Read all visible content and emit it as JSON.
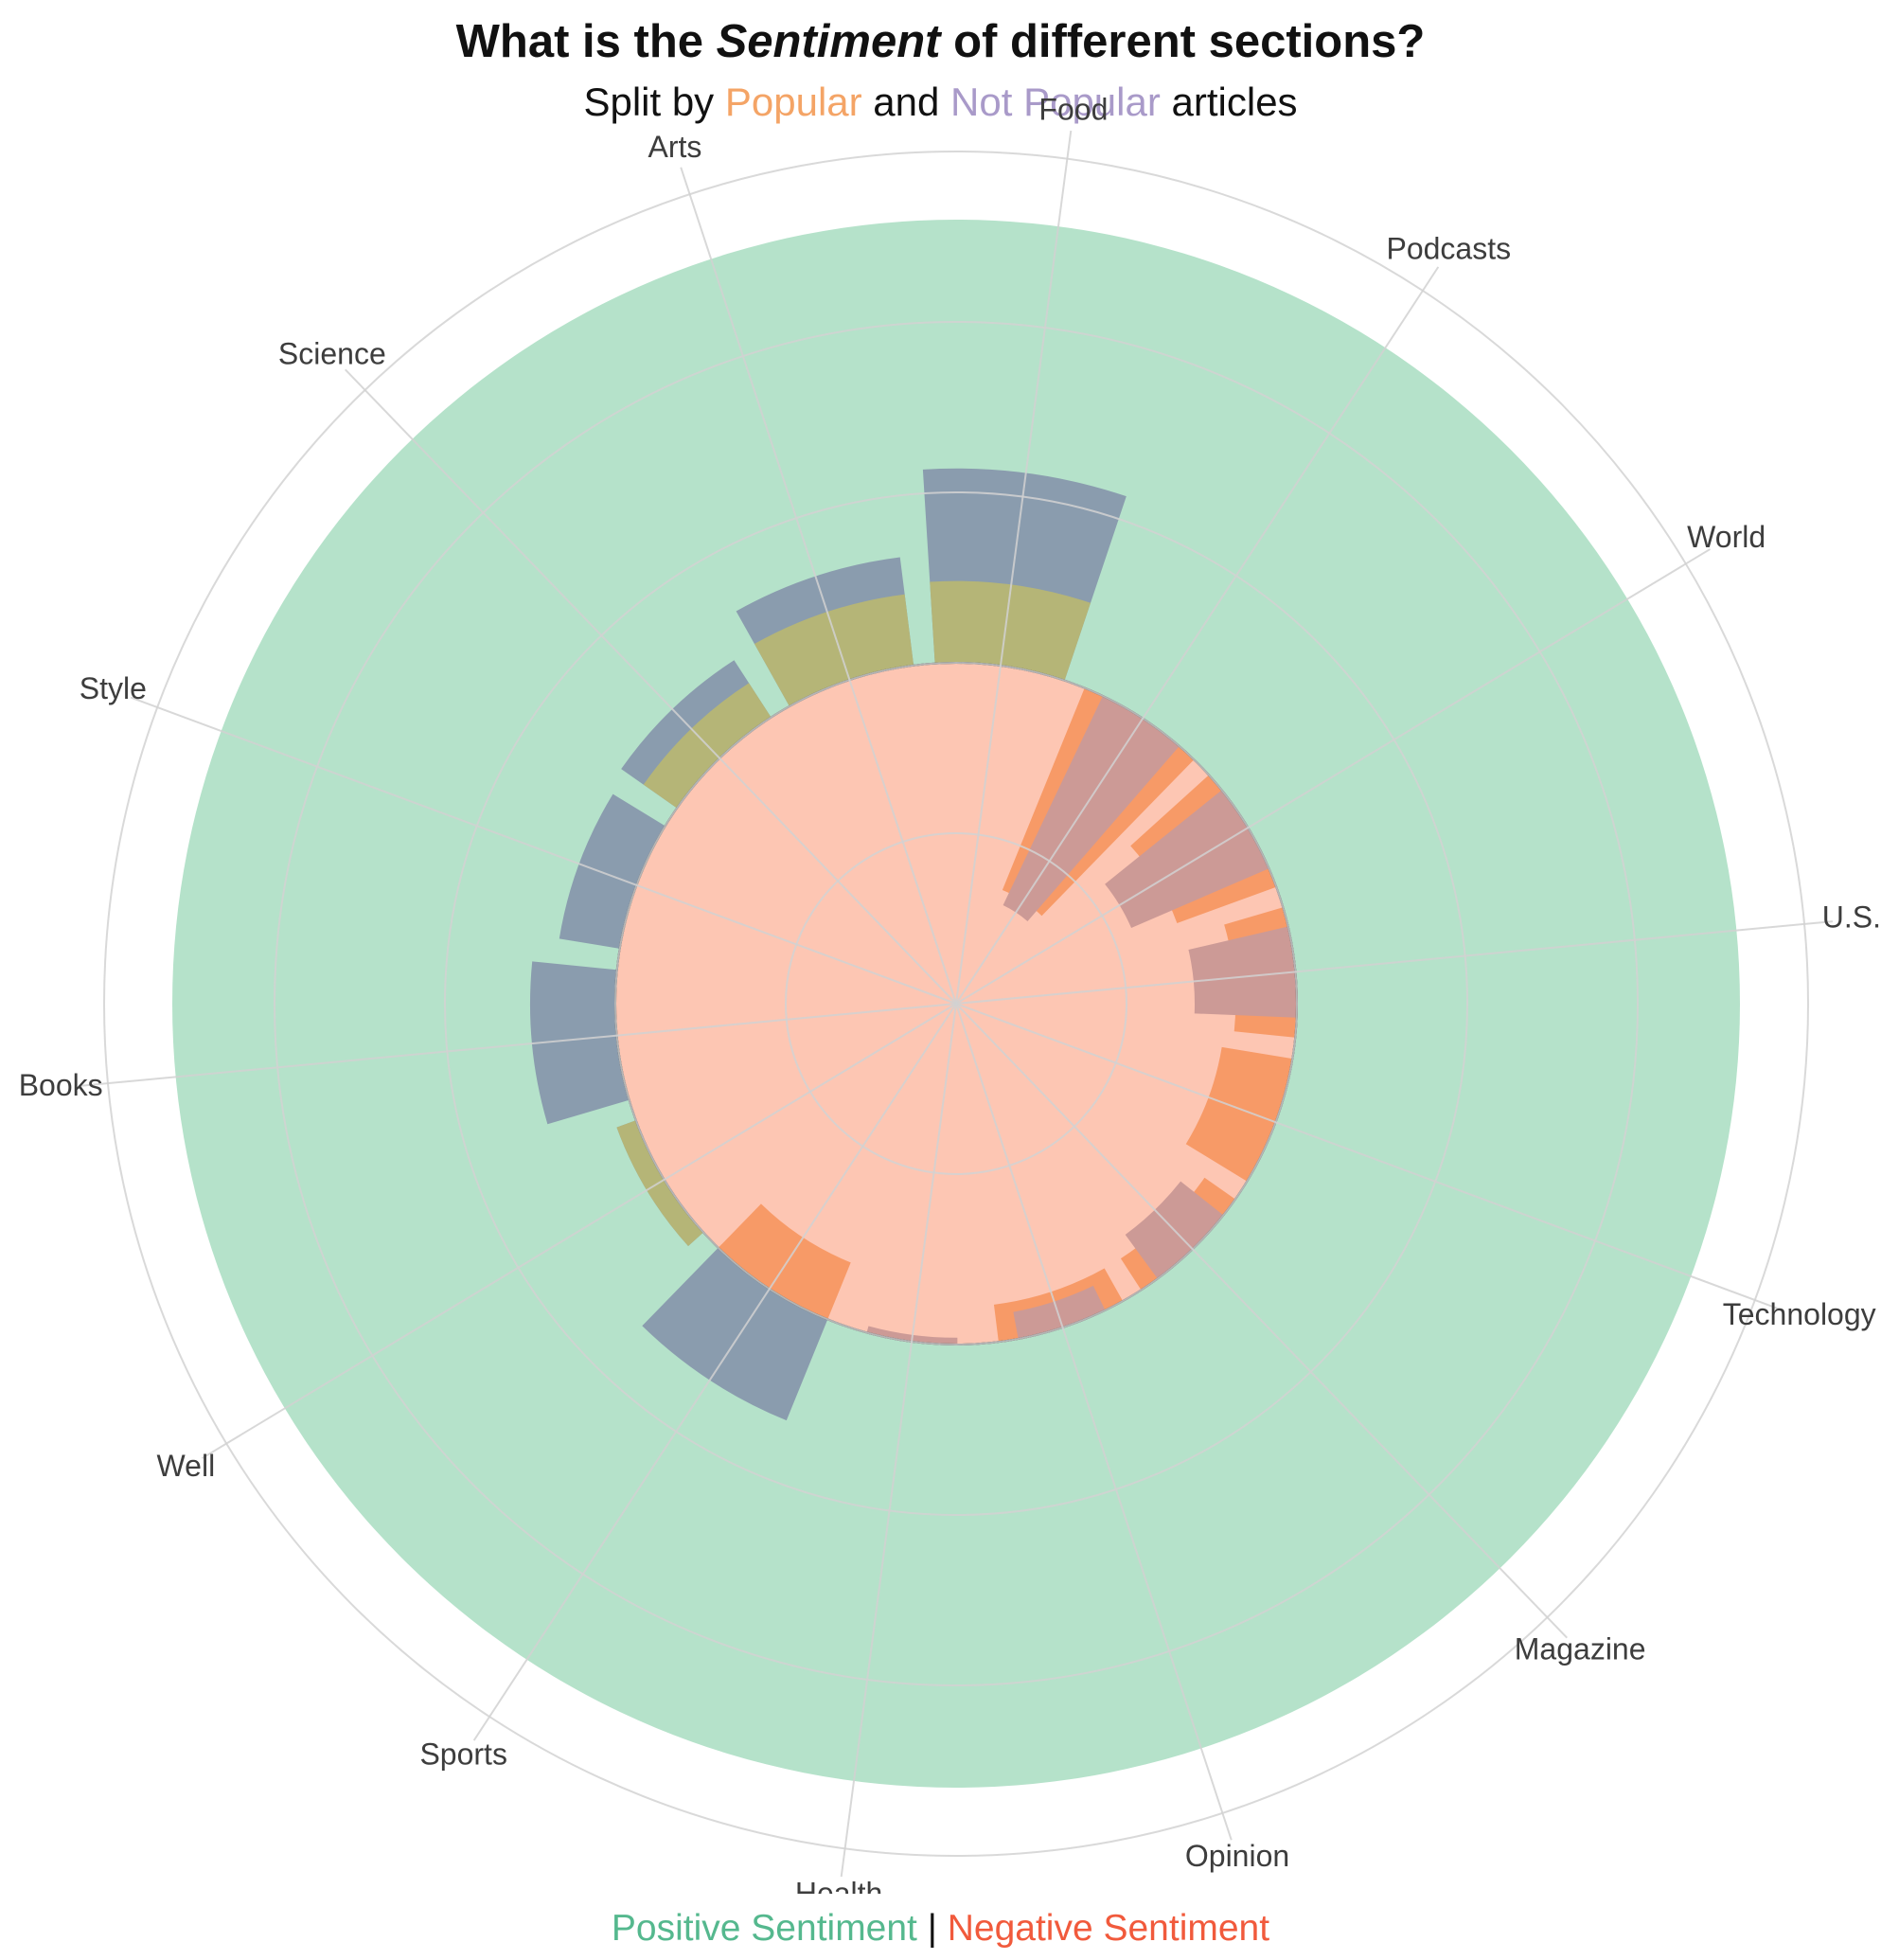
{
  "title": {
    "pre": "What is the ",
    "emph": "Sentiment",
    "post": " of different sections?"
  },
  "subtitle": {
    "pre": "Split by ",
    "popular": "Popular",
    "mid": " and ",
    "not_popular": "Not Popular",
    "post": " articles"
  },
  "footer": {
    "positive": "Positive Sentiment",
    "sep": " | ",
    "negative": "Negative Sentiment"
  },
  "colors": {
    "popular": "#f4a466",
    "not_popular": "#a99ac9",
    "positive": "#55b88e",
    "negative": "#f15a3c",
    "positive_fill": "#b5e2ca",
    "negative_fill": "#fdc6b3",
    "not_popular_positive_bar": "#8a9cae",
    "popular_positive_bar": "#b5b577",
    "popular_negative_bar": "#f79a67",
    "not_popular_negative_bar": "#cc9a96",
    "grid": "#d2d2d2",
    "label": "#3d3d3d"
  },
  "chart_data": {
    "type": "polar-bar",
    "title": "What is the Sentiment of different sections?",
    "subtitle": "Split by Popular and Not Popular articles",
    "categories": [
      "Food",
      "Podcasts",
      "World",
      "U.S.",
      "Technology",
      "Magazine",
      "Opinion",
      "Health",
      "Sports",
      "Well",
      "Books",
      "Style",
      "Science",
      "Arts"
    ],
    "radial_scale": {
      "baseline": 1.0,
      "max": 2.3,
      "gridlines": [
        0.5,
        1.0,
        1.5,
        2.0,
        2.5
      ]
    },
    "series": [
      {
        "name": "Not Popular",
        "sentiment": "Positive",
        "values": [
          1.57,
          0.0,
          0.0,
          0.0,
          0.0,
          0.0,
          0.0,
          0.0,
          1.32,
          1.06,
          1.25,
          1.18,
          1.2,
          1.32
        ]
      },
      {
        "name": "Popular",
        "sentiment": "Positive",
        "values": [
          1.24,
          0.0,
          0.0,
          0.0,
          0.0,
          0.0,
          0.0,
          0.0,
          0.0,
          1.06,
          0.0,
          0.0,
          1.12,
          1.21
        ]
      },
      {
        "name": "Popular",
        "sentiment": "Negative",
        "values": [
          0.0,
          0.36,
          0.69,
          0.82,
          0.79,
          0.89,
          0.89,
          0.0,
          0.82,
          0.0,
          0.0,
          0.0,
          0.0,
          0.0
        ]
      },
      {
        "name": "Not Popular",
        "sentiment": "Negative",
        "values": [
          0.0,
          0.32,
          0.56,
          0.7,
          0.0,
          0.84,
          0.92,
          0.98,
          0.0,
          0.0,
          0.0,
          0.0,
          0.0,
          0.0
        ]
      }
    ],
    "background_bands": {
      "positive_outer": 2.3,
      "negative_inner": 1.0
    },
    "grid": true
  }
}
